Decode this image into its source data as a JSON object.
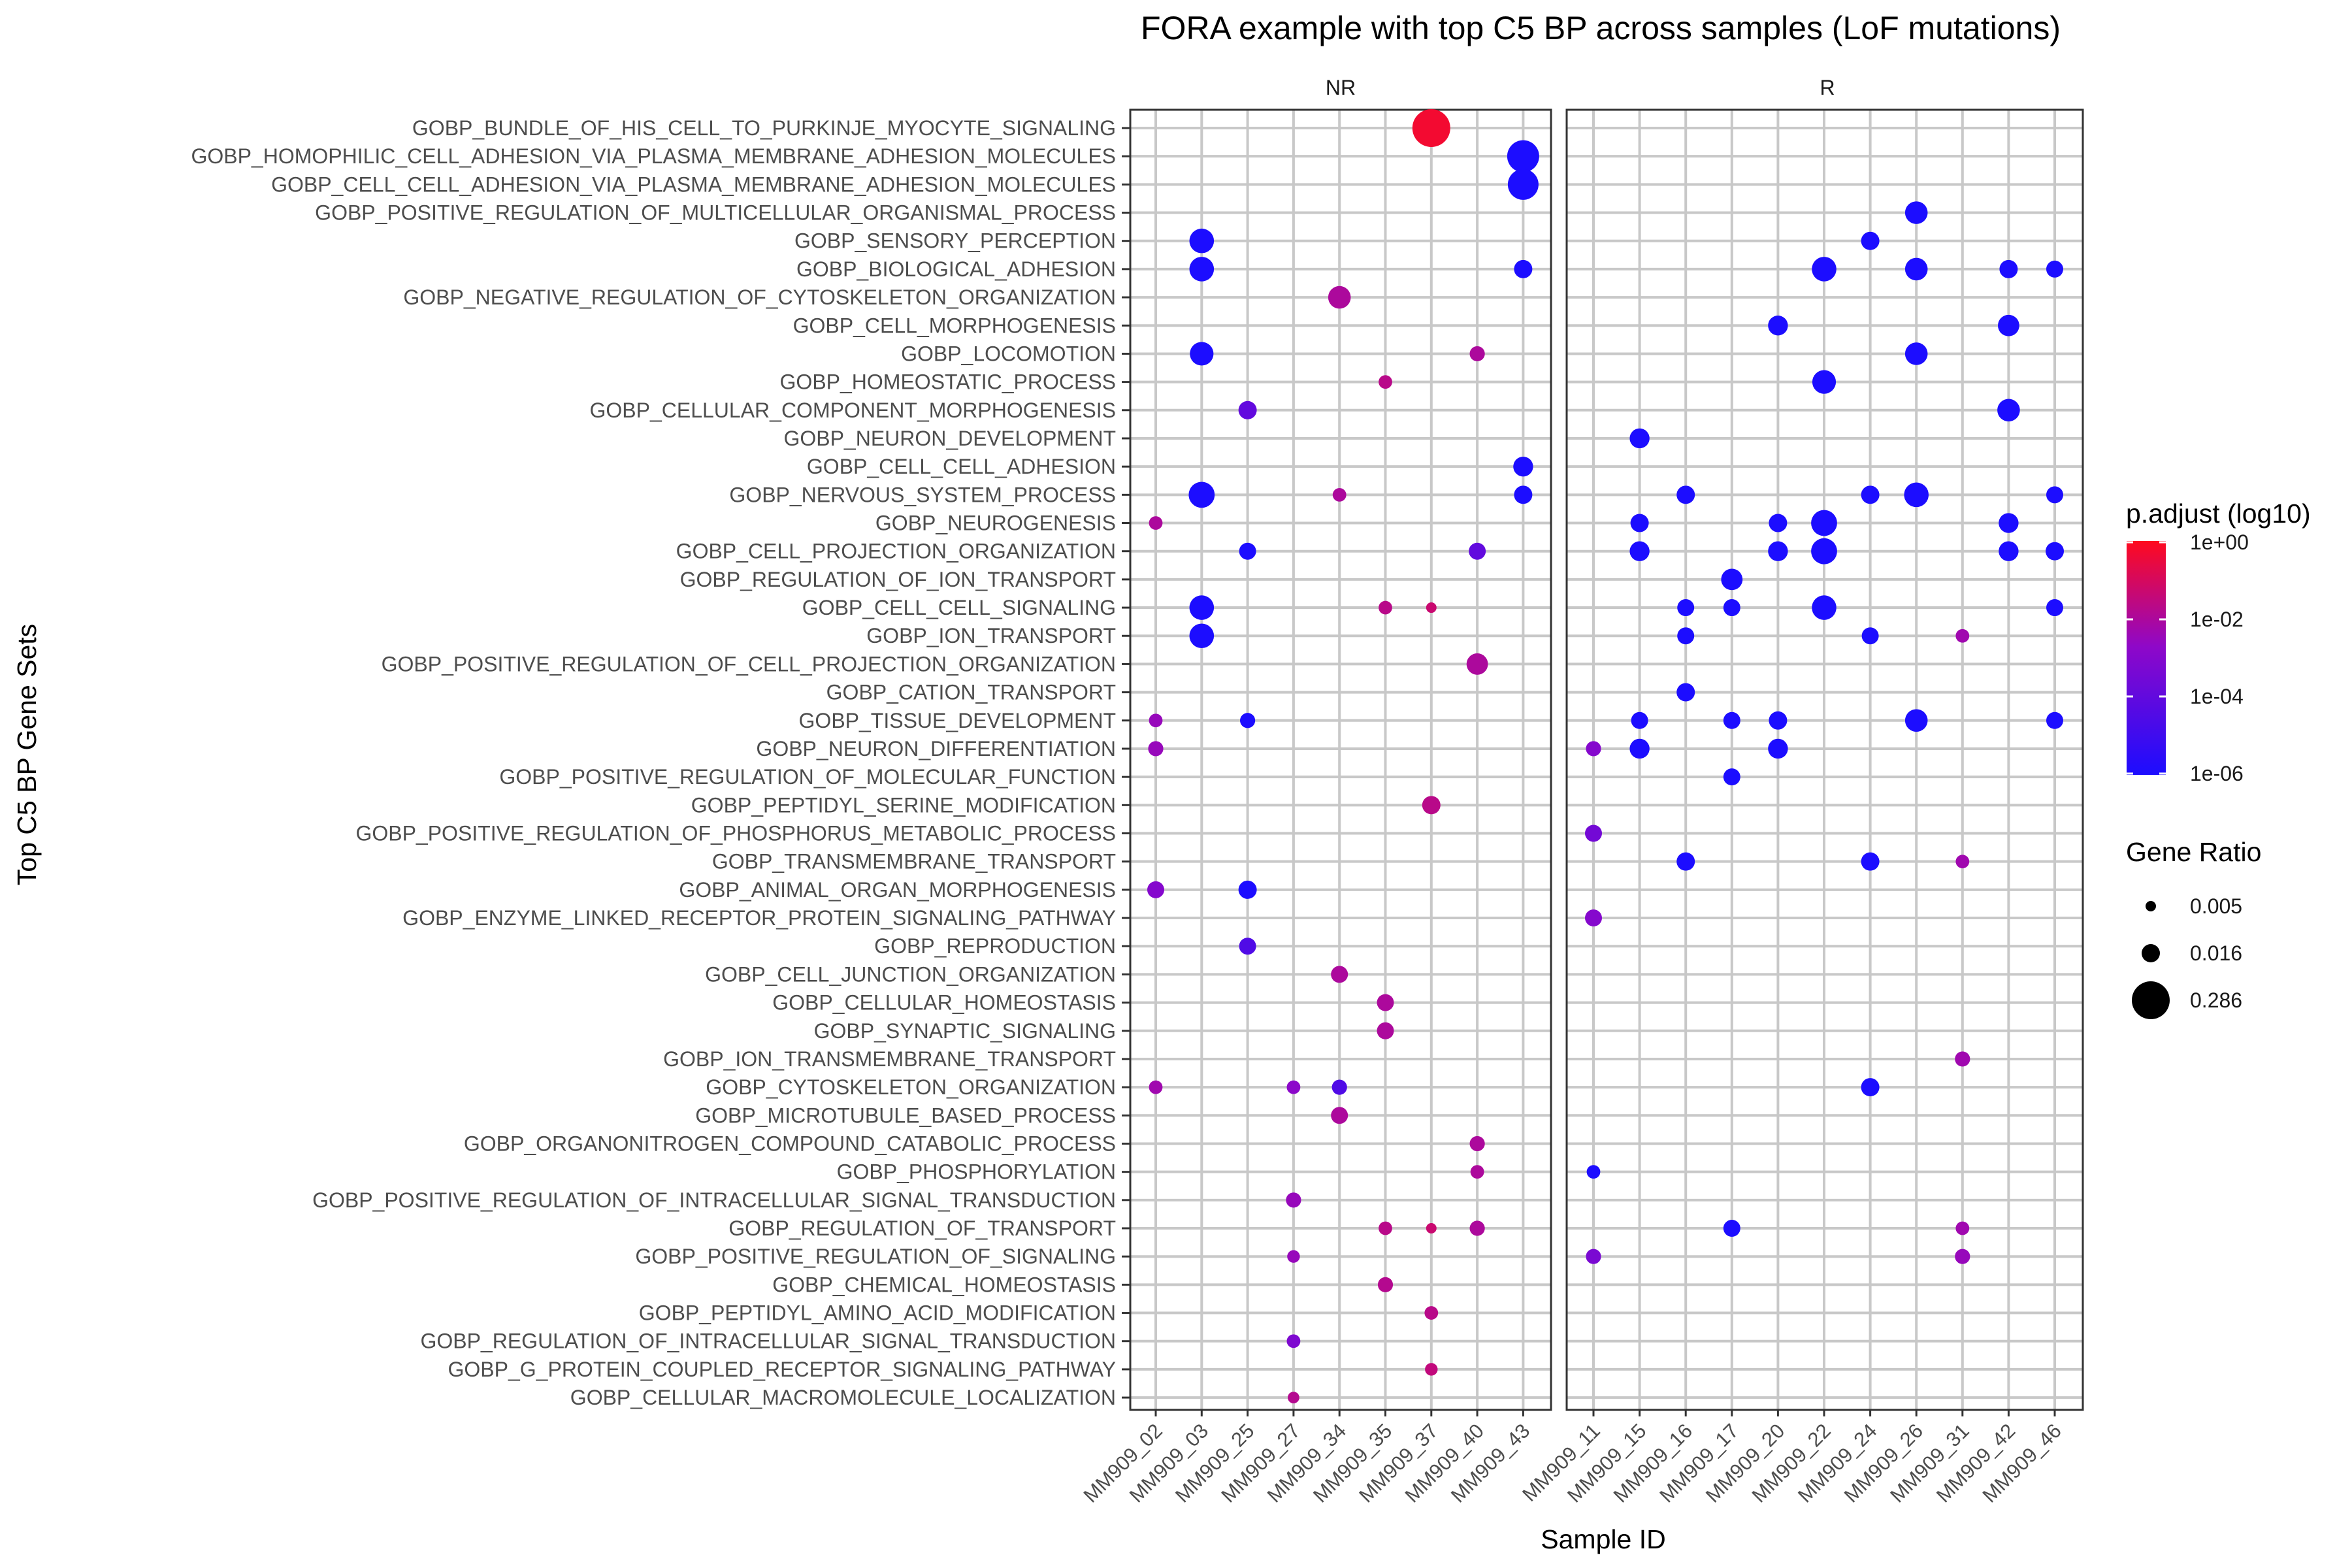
{
  "chart_data": {
    "type": "scatter",
    "title": "FORA example with top C5 BP across samples (LoF mutations)",
    "xlabel": "Sample ID",
    "ylabel": "Top C5 BP Gene Sets",
    "facets": [
      {
        "name": "NR",
        "samples": [
          "MM909_02",
          "MM909_03",
          "MM909_25",
          "MM909_27",
          "MM909_34",
          "MM909_35",
          "MM909_37",
          "MM909_40",
          "MM909_43"
        ]
      },
      {
        "name": "R",
        "samples": [
          "MM909_11",
          "MM909_15",
          "MM909_16",
          "MM909_17",
          "MM909_20",
          "MM909_22",
          "MM909_24",
          "MM909_26",
          "MM909_31",
          "MM909_42",
          "MM909_46"
        ]
      }
    ],
    "gene_sets": [
      "GOBP_BUNDLE_OF_HIS_CELL_TO_PURKINJE_MYOCYTE_SIGNALING",
      "GOBP_HOMOPHILIC_CELL_ADHESION_VIA_PLASMA_MEMBRANE_ADHESION_MOLECULES",
      "GOBP_CELL_CELL_ADHESION_VIA_PLASMA_MEMBRANE_ADHESION_MOLECULES",
      "GOBP_POSITIVE_REGULATION_OF_MULTICELLULAR_ORGANISMAL_PROCESS",
      "GOBP_SENSORY_PERCEPTION",
      "GOBP_BIOLOGICAL_ADHESION",
      "GOBP_NEGATIVE_REGULATION_OF_CYTOSKELETON_ORGANIZATION",
      "GOBP_CELL_MORPHOGENESIS",
      "GOBP_LOCOMOTION",
      "GOBP_HOMEOSTATIC_PROCESS",
      "GOBP_CELLULAR_COMPONENT_MORPHOGENESIS",
      "GOBP_NEURON_DEVELOPMENT",
      "GOBP_CELL_CELL_ADHESION",
      "GOBP_NERVOUS_SYSTEM_PROCESS",
      "GOBP_NEUROGENESIS",
      "GOBP_CELL_PROJECTION_ORGANIZATION",
      "GOBP_REGULATION_OF_ION_TRANSPORT",
      "GOBP_CELL_CELL_SIGNALING",
      "GOBP_ION_TRANSPORT",
      "GOBP_POSITIVE_REGULATION_OF_CELL_PROJECTION_ORGANIZATION",
      "GOBP_CATION_TRANSPORT",
      "GOBP_TISSUE_DEVELOPMENT",
      "GOBP_NEURON_DIFFERENTIATION",
      "GOBP_POSITIVE_REGULATION_OF_MOLECULAR_FUNCTION",
      "GOBP_PEPTIDYL_SERINE_MODIFICATION",
      "GOBP_POSITIVE_REGULATION_OF_PHOSPHORUS_METABOLIC_PROCESS",
      "GOBP_TRANSMEMBRANE_TRANSPORT",
      "GOBP_ANIMAL_ORGAN_MORPHOGENESIS",
      "GOBP_ENZYME_LINKED_RECEPTOR_PROTEIN_SIGNALING_PATHWAY",
      "GOBP_REPRODUCTION",
      "GOBP_CELL_JUNCTION_ORGANIZATION",
      "GOBP_CELLULAR_HOMEOSTASIS",
      "GOBP_SYNAPTIC_SIGNALING",
      "GOBP_ION_TRANSMEMBRANE_TRANSPORT",
      "GOBP_CYTOSKELETON_ORGANIZATION",
      "GOBP_MICROTUBULE_BASED_PROCESS",
      "GOBP_ORGANONITROGEN_COMPOUND_CATABOLIC_PROCESS",
      "GOBP_PHOSPHORYLATION",
      "GOBP_POSITIVE_REGULATION_OF_INTRACELLULAR_SIGNAL_TRANSDUCTION",
      "GOBP_REGULATION_OF_TRANSPORT",
      "GOBP_POSITIVE_REGULATION_OF_SIGNALING",
      "GOBP_CHEMICAL_HOMEOSTASIS",
      "GOBP_PEPTIDYL_AMINO_ACID_MODIFICATION",
      "GOBP_REGULATION_OF_INTRACELLULAR_SIGNAL_TRANSDUCTION",
      "GOBP_G_PROTEIN_COUPLED_RECEPTOR_SIGNALING_PATHWAY",
      "GOBP_CELLULAR_MACROMOLECULE_LOCALIZATION"
    ],
    "points": [
      {
        "set": 0,
        "sample": "MM909_37",
        "ratio": 0.286,
        "log10_padj": -0.3
      },
      {
        "set": 1,
        "sample": "MM909_43",
        "ratio": 0.12,
        "log10_padj": -6
      },
      {
        "set": 2,
        "sample": "MM909_43",
        "ratio": 0.1,
        "log10_padj": -6
      },
      {
        "set": 3,
        "sample": "MM909_26",
        "ratio": 0.03,
        "log10_padj": -6
      },
      {
        "set": 4,
        "sample": "MM909_03",
        "ratio": 0.04,
        "log10_padj": -6
      },
      {
        "set": 4,
        "sample": "MM909_24",
        "ratio": 0.016,
        "log10_padj": -6
      },
      {
        "set": 5,
        "sample": "MM909_03",
        "ratio": 0.04,
        "log10_padj": -6
      },
      {
        "set": 5,
        "sample": "MM909_43",
        "ratio": 0.016,
        "log10_padj": -6
      },
      {
        "set": 5,
        "sample": "MM909_22",
        "ratio": 0.04,
        "log10_padj": -6
      },
      {
        "set": 5,
        "sample": "MM909_26",
        "ratio": 0.03,
        "log10_padj": -6
      },
      {
        "set": 5,
        "sample": "MM909_42",
        "ratio": 0.016,
        "log10_padj": -6
      },
      {
        "set": 5,
        "sample": "MM909_46",
        "ratio": 0.013,
        "log10_padj": -6
      },
      {
        "set": 6,
        "sample": "MM909_34",
        "ratio": 0.03,
        "log10_padj": -2
      },
      {
        "set": 7,
        "sample": "MM909_20",
        "ratio": 0.02,
        "log10_padj": -6
      },
      {
        "set": 7,
        "sample": "MM909_42",
        "ratio": 0.025,
        "log10_padj": -6
      },
      {
        "set": 8,
        "sample": "MM909_03",
        "ratio": 0.035,
        "log10_padj": -6
      },
      {
        "set": 8,
        "sample": "MM909_40",
        "ratio": 0.01,
        "log10_padj": -2
      },
      {
        "set": 8,
        "sample": "MM909_26",
        "ratio": 0.03,
        "log10_padj": -6
      },
      {
        "set": 9,
        "sample": "MM909_35",
        "ratio": 0.008,
        "log10_padj": -1.7
      },
      {
        "set": 9,
        "sample": "MM909_22",
        "ratio": 0.035,
        "log10_padj": -6
      },
      {
        "set": 10,
        "sample": "MM909_25",
        "ratio": 0.016,
        "log10_padj": -4
      },
      {
        "set": 10,
        "sample": "MM909_42",
        "ratio": 0.03,
        "log10_padj": -6
      },
      {
        "set": 11,
        "sample": "MM909_15",
        "ratio": 0.02,
        "log10_padj": -6
      },
      {
        "set": 12,
        "sample": "MM909_43",
        "ratio": 0.02,
        "log10_padj": -6
      },
      {
        "set": 13,
        "sample": "MM909_03",
        "ratio": 0.05,
        "log10_padj": -6
      },
      {
        "set": 13,
        "sample": "MM909_34",
        "ratio": 0.008,
        "log10_padj": -2
      },
      {
        "set": 13,
        "sample": "MM909_43",
        "ratio": 0.016,
        "log10_padj": -6
      },
      {
        "set": 13,
        "sample": "MM909_16",
        "ratio": 0.016,
        "log10_padj": -6
      },
      {
        "set": 13,
        "sample": "MM909_24",
        "ratio": 0.016,
        "log10_padj": -6
      },
      {
        "set": 13,
        "sample": "MM909_26",
        "ratio": 0.04,
        "log10_padj": -6
      },
      {
        "set": 13,
        "sample": "MM909_46",
        "ratio": 0.013,
        "log10_padj": -6
      },
      {
        "set": 14,
        "sample": "MM909_02",
        "ratio": 0.008,
        "log10_padj": -2
      },
      {
        "set": 14,
        "sample": "MM909_15",
        "ratio": 0.016,
        "log10_padj": -6
      },
      {
        "set": 14,
        "sample": "MM909_20",
        "ratio": 0.016,
        "log10_padj": -6
      },
      {
        "set": 14,
        "sample": "MM909_22",
        "ratio": 0.05,
        "log10_padj": -6
      },
      {
        "set": 14,
        "sample": "MM909_42",
        "ratio": 0.02,
        "log10_padj": -6
      },
      {
        "set": 15,
        "sample": "MM909_25",
        "ratio": 0.013,
        "log10_padj": -6
      },
      {
        "set": 15,
        "sample": "MM909_40",
        "ratio": 0.013,
        "log10_padj": -4
      },
      {
        "set": 15,
        "sample": "MM909_15",
        "ratio": 0.02,
        "log10_padj": -6
      },
      {
        "set": 15,
        "sample": "MM909_20",
        "ratio": 0.02,
        "log10_padj": -6
      },
      {
        "set": 15,
        "sample": "MM909_22",
        "ratio": 0.05,
        "log10_padj": -6
      },
      {
        "set": 15,
        "sample": "MM909_42",
        "ratio": 0.02,
        "log10_padj": -6
      },
      {
        "set": 15,
        "sample": "MM909_46",
        "ratio": 0.016,
        "log10_padj": -6
      },
      {
        "set": 16,
        "sample": "MM909_17",
        "ratio": 0.025,
        "log10_padj": -6
      },
      {
        "set": 17,
        "sample": "MM909_03",
        "ratio": 0.04,
        "log10_padj": -6
      },
      {
        "set": 17,
        "sample": "MM909_35",
        "ratio": 0.008,
        "log10_padj": -1.7
      },
      {
        "set": 17,
        "sample": "MM909_37",
        "ratio": 0.005,
        "log10_padj": -1.3
      },
      {
        "set": 17,
        "sample": "MM909_16",
        "ratio": 0.013,
        "log10_padj": -6
      },
      {
        "set": 17,
        "sample": "MM909_17",
        "ratio": 0.013,
        "log10_padj": -6
      },
      {
        "set": 17,
        "sample": "MM909_22",
        "ratio": 0.04,
        "log10_padj": -6
      },
      {
        "set": 17,
        "sample": "MM909_46",
        "ratio": 0.013,
        "log10_padj": -6
      },
      {
        "set": 18,
        "sample": "MM909_03",
        "ratio": 0.04,
        "log10_padj": -6
      },
      {
        "set": 18,
        "sample": "MM909_16",
        "ratio": 0.013,
        "log10_padj": -6
      },
      {
        "set": 18,
        "sample": "MM909_24",
        "ratio": 0.013,
        "log10_padj": -6
      },
      {
        "set": 18,
        "sample": "MM909_31",
        "ratio": 0.008,
        "log10_padj": -2.3
      },
      {
        "set": 19,
        "sample": "MM909_40",
        "ratio": 0.025,
        "log10_padj": -2
      },
      {
        "set": 20,
        "sample": "MM909_16",
        "ratio": 0.016,
        "log10_padj": -6
      },
      {
        "set": 21,
        "sample": "MM909_02",
        "ratio": 0.008,
        "log10_padj": -2.5
      },
      {
        "set": 21,
        "sample": "MM909_25",
        "ratio": 0.01,
        "log10_padj": -6
      },
      {
        "set": 21,
        "sample": "MM909_15",
        "ratio": 0.013,
        "log10_padj": -6
      },
      {
        "set": 21,
        "sample": "MM909_17",
        "ratio": 0.013,
        "log10_padj": -6
      },
      {
        "set": 21,
        "sample": "MM909_20",
        "ratio": 0.016,
        "log10_padj": -6
      },
      {
        "set": 21,
        "sample": "MM909_26",
        "ratio": 0.03,
        "log10_padj": -6
      },
      {
        "set": 21,
        "sample": "MM909_46",
        "ratio": 0.013,
        "log10_padj": -6
      },
      {
        "set": 22,
        "sample": "MM909_02",
        "ratio": 0.01,
        "log10_padj": -2.5
      },
      {
        "set": 22,
        "sample": "MM909_11",
        "ratio": 0.01,
        "log10_padj": -3
      },
      {
        "set": 22,
        "sample": "MM909_15",
        "ratio": 0.02,
        "log10_padj": -6
      },
      {
        "set": 22,
        "sample": "MM909_20",
        "ratio": 0.02,
        "log10_padj": -6
      },
      {
        "set": 23,
        "sample": "MM909_17",
        "ratio": 0.013,
        "log10_padj": -6
      },
      {
        "set": 24,
        "sample": "MM909_37",
        "ratio": 0.016,
        "log10_padj": -1.7
      },
      {
        "set": 25,
        "sample": "MM909_11",
        "ratio": 0.013,
        "log10_padj": -3.5
      },
      {
        "set": 26,
        "sample": "MM909_16",
        "ratio": 0.016,
        "log10_padj": -6
      },
      {
        "set": 26,
        "sample": "MM909_24",
        "ratio": 0.016,
        "log10_padj": -6
      },
      {
        "set": 26,
        "sample": "MM909_31",
        "ratio": 0.008,
        "log10_padj": -2.3
      },
      {
        "set": 27,
        "sample": "MM909_02",
        "ratio": 0.013,
        "log10_padj": -3
      },
      {
        "set": 27,
        "sample": "MM909_25",
        "ratio": 0.016,
        "log10_padj": -6
      },
      {
        "set": 28,
        "sample": "MM909_11",
        "ratio": 0.013,
        "log10_padj": -3
      },
      {
        "set": 29,
        "sample": "MM909_25",
        "ratio": 0.013,
        "log10_padj": -4.5
      },
      {
        "set": 30,
        "sample": "MM909_34",
        "ratio": 0.013,
        "log10_padj": -2
      },
      {
        "set": 31,
        "sample": "MM909_35",
        "ratio": 0.013,
        "log10_padj": -2
      },
      {
        "set": 32,
        "sample": "MM909_35",
        "ratio": 0.013,
        "log10_padj": -2
      },
      {
        "set": 33,
        "sample": "MM909_31",
        "ratio": 0.01,
        "log10_padj": -2.3
      },
      {
        "set": 34,
        "sample": "MM909_02",
        "ratio": 0.008,
        "log10_padj": -2.3
      },
      {
        "set": 34,
        "sample": "MM909_27",
        "ratio": 0.008,
        "log10_padj": -2.8
      },
      {
        "set": 34,
        "sample": "MM909_34",
        "ratio": 0.01,
        "log10_padj": -4.5
      },
      {
        "set": 34,
        "sample": "MM909_24",
        "ratio": 0.016,
        "log10_padj": -6
      },
      {
        "set": 35,
        "sample": "MM909_34",
        "ratio": 0.013,
        "log10_padj": -2
      },
      {
        "set": 36,
        "sample": "MM909_40",
        "ratio": 0.01,
        "log10_padj": -2
      },
      {
        "set": 37,
        "sample": "MM909_40",
        "ratio": 0.008,
        "log10_padj": -2
      },
      {
        "set": 37,
        "sample": "MM909_11",
        "ratio": 0.008,
        "log10_padj": -6
      },
      {
        "set": 38,
        "sample": "MM909_27",
        "ratio": 0.01,
        "log10_padj": -2.5
      },
      {
        "set": 39,
        "sample": "MM909_35",
        "ratio": 0.008,
        "log10_padj": -1.7
      },
      {
        "set": 39,
        "sample": "MM909_37",
        "ratio": 0.005,
        "log10_padj": -1.3
      },
      {
        "set": 39,
        "sample": "MM909_40",
        "ratio": 0.01,
        "log10_padj": -2
      },
      {
        "set": 39,
        "sample": "MM909_17",
        "ratio": 0.013,
        "log10_padj": -6
      },
      {
        "set": 39,
        "sample": "MM909_31",
        "ratio": 0.008,
        "log10_padj": -2.3
      },
      {
        "set": 40,
        "sample": "MM909_27",
        "ratio": 0.007,
        "log10_padj": -2.5
      },
      {
        "set": 40,
        "sample": "MM909_11",
        "ratio": 0.01,
        "log10_padj": -3.3
      },
      {
        "set": 40,
        "sample": "MM909_31",
        "ratio": 0.01,
        "log10_padj": -2.5
      },
      {
        "set": 41,
        "sample": "MM909_35",
        "ratio": 0.01,
        "log10_padj": -1.8
      },
      {
        "set": 42,
        "sample": "MM909_37",
        "ratio": 0.008,
        "log10_padj": -1.7
      },
      {
        "set": 43,
        "sample": "MM909_27",
        "ratio": 0.008,
        "log10_padj": -3.2
      },
      {
        "set": 44,
        "sample": "MM909_37",
        "ratio": 0.007,
        "log10_padj": -1.5
      },
      {
        "set": 45,
        "sample": "MM909_27",
        "ratio": 0.006,
        "log10_padj": -1.8
      }
    ],
    "color_legend": {
      "title": "p.adjust (log10)",
      "ticks": [
        "1e+00",
        "1e-02",
        "1e-04",
        "1e-06"
      ],
      "low_color": "#1c0dff",
      "high_color": "#ff0a1e"
    },
    "size_legend": {
      "title": "Gene Ratio",
      "values": [
        0.005,
        0.016,
        0.286
      ],
      "labels": [
        "0.005",
        "0.016",
        "0.286"
      ]
    },
    "grid": true,
    "legend_position": "right"
  }
}
